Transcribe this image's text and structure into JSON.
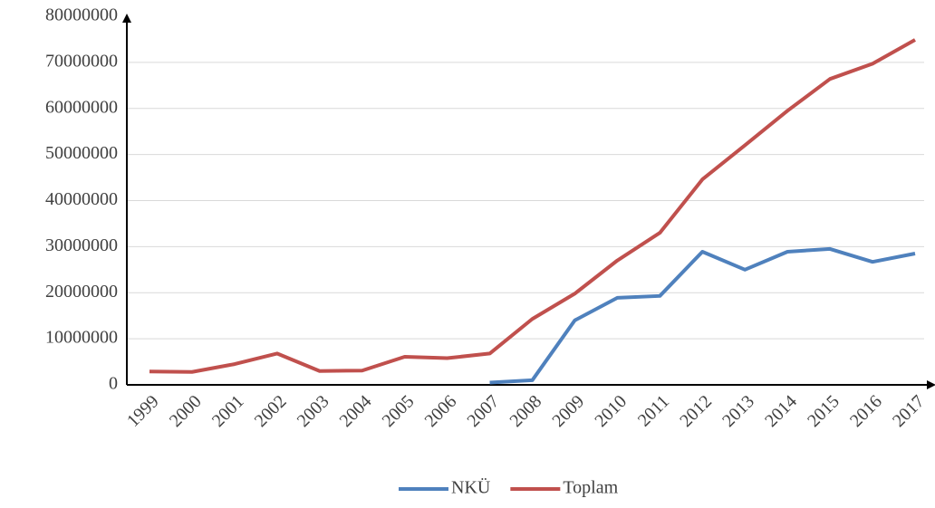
{
  "chart_data": {
    "type": "line",
    "categories": [
      "1999",
      "2000",
      "2001",
      "2002",
      "2003",
      "2004",
      "2005",
      "2006",
      "2007",
      "2008",
      "2009",
      "2010",
      "2011",
      "2012",
      "2013",
      "2014",
      "2015",
      "2016",
      "2017"
    ],
    "series": [
      {
        "name": "NKÜ",
        "color": "#4f81bd",
        "values": [
          null,
          null,
          null,
          null,
          null,
          null,
          null,
          null,
          500000,
          1000000,
          14000000,
          18900000,
          19300000,
          28900000,
          25000000,
          28900000,
          29500000,
          26700000,
          28500000
        ]
      },
      {
        "name": "Toplam",
        "color": "#c0504d",
        "values": [
          2900000,
          2800000,
          4500000,
          6800000,
          3000000,
          3100000,
          6100000,
          5800000,
          6800000,
          14300000,
          19800000,
          27000000,
          33000000,
          44600000,
          52000000,
          59500000,
          66400000,
          69700000,
          74900000
        ]
      }
    ],
    "ylim": [
      0,
      80000000
    ],
    "yticks": [
      0,
      10000000,
      20000000,
      30000000,
      40000000,
      50000000,
      60000000,
      70000000,
      80000000
    ],
    "grid": true,
    "legend": "bottom"
  }
}
